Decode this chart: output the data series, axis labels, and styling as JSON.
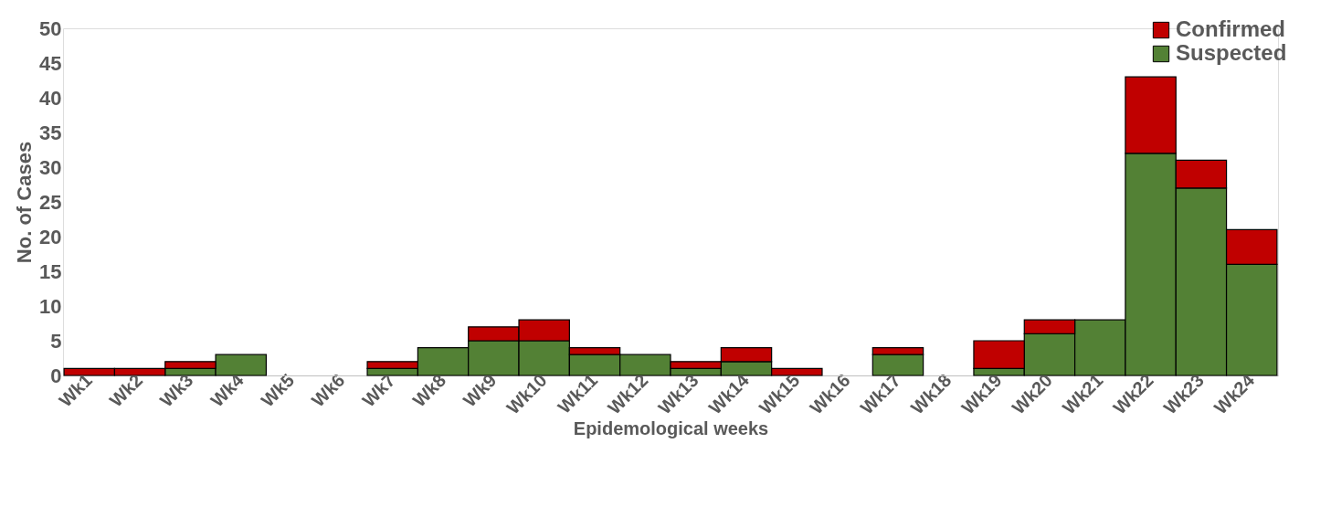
{
  "chart_data": {
    "type": "bar",
    "stacked": true,
    "xlabel": "Epidemological weeks",
    "ylabel": "No. of Cases",
    "categories": [
      "Wk1",
      "Wk2",
      "Wk3",
      "Wk4",
      "Wk5",
      "Wk6",
      "Wk7",
      "Wk8",
      "Wk9",
      "Wk10",
      "Wk11",
      "Wk12",
      "Wk13",
      "Wk14",
      "Wk15",
      "Wk16",
      "Wk17",
      "Wk18",
      "Wk19",
      "Wk20",
      "Wk21",
      "Wk22",
      "Wk23",
      "Wk24"
    ],
    "series": [
      {
        "name": "Suspected",
        "color": "#538135",
        "values": [
          0,
          0,
          1,
          3,
          0,
          0,
          1,
          4,
          5,
          5,
          3,
          3,
          1,
          2,
          0,
          0,
          3,
          0,
          1,
          6,
          8,
          32,
          27,
          16
        ]
      },
      {
        "name": "Confirmed",
        "color": "#c00000",
        "values": [
          1,
          1,
          1,
          0,
          0,
          0,
          1,
          0,
          2,
          3,
          1,
          0,
          1,
          2,
          1,
          0,
          1,
          0,
          4,
          2,
          0,
          11,
          4,
          5
        ]
      }
    ],
    "ylim": [
      0,
      50
    ],
    "yticks": [
      0,
      5,
      10,
      15,
      20,
      25,
      30,
      35,
      40,
      45,
      50
    ],
    "grid": false,
    "legend": "top right"
  }
}
